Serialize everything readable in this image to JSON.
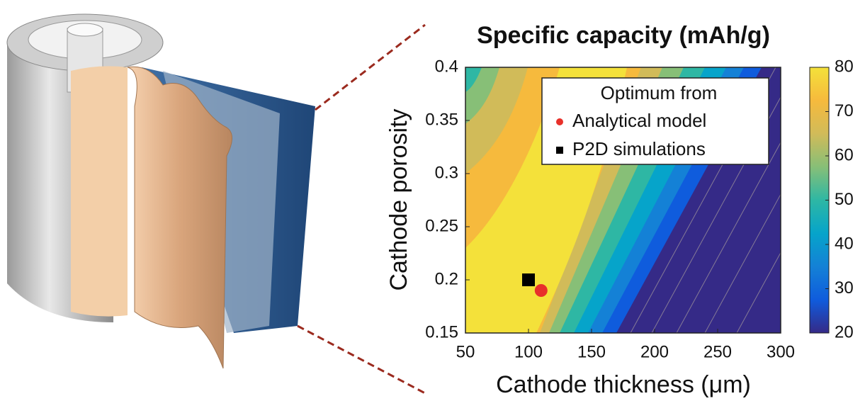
{
  "chart_data": {
    "type": "contour",
    "title": "Specific capacity (mAh/g)",
    "x_label": "Cathode thickness (μm)",
    "y_label": "Cathode porosity",
    "xlim": [
      50,
      300
    ],
    "xticks": [
      50,
      100,
      150,
      200,
      250,
      300
    ],
    "ylim": [
      0.15,
      0.4
    ],
    "yticks": [
      0.15,
      0.2,
      0.25,
      0.3,
      0.35,
      0.4
    ],
    "colorbar": {
      "lim": [
        20,
        80
      ],
      "ticks": [
        20,
        30,
        40,
        50,
        60,
        70,
        80
      ],
      "colors": [
        "#352a87",
        "#0f5cdd",
        "#1481d6",
        "#06a4ca",
        "#2eb7a4",
        "#87bf77",
        "#d1bb59",
        "#f6ba3d",
        "#f4e13a"
      ]
    },
    "legend_title": "Optimum from",
    "series": [
      {
        "name": "Analytical model",
        "color": "#e8302a",
        "marker": "circle",
        "x": [
          110
        ],
        "values": [
          0.19
        ]
      },
      {
        "name": "P2D simulations",
        "color": "#000000",
        "marker": "square",
        "x": [
          100
        ],
        "values": [
          0.2
        ]
      }
    ]
  }
}
